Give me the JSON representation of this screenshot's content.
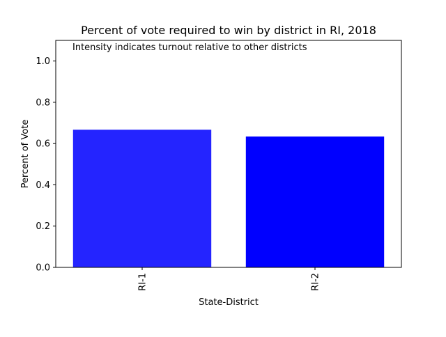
{
  "chart_data": {
    "type": "bar",
    "title": "Percent of vote required to win by district in RI, 2018",
    "annotation": "Intensity indicates turnout relative to other districts",
    "xlabel": "State-District",
    "ylabel": "Percent of Vote",
    "categories": [
      "RI-1",
      "RI-2"
    ],
    "values": [
      0.667,
      0.634
    ],
    "bar_colors": [
      "#2424ff",
      "#0000ff"
    ],
    "ylim": [
      0,
      1.1
    ],
    "yticks": [
      0.0,
      0.2,
      0.4,
      0.6,
      0.8,
      1.0
    ],
    "ytick_labels": [
      "0.0",
      "0.2",
      "0.4",
      "0.6",
      "0.8",
      "1.0"
    ],
    "grid": false,
    "legend": "none"
  }
}
